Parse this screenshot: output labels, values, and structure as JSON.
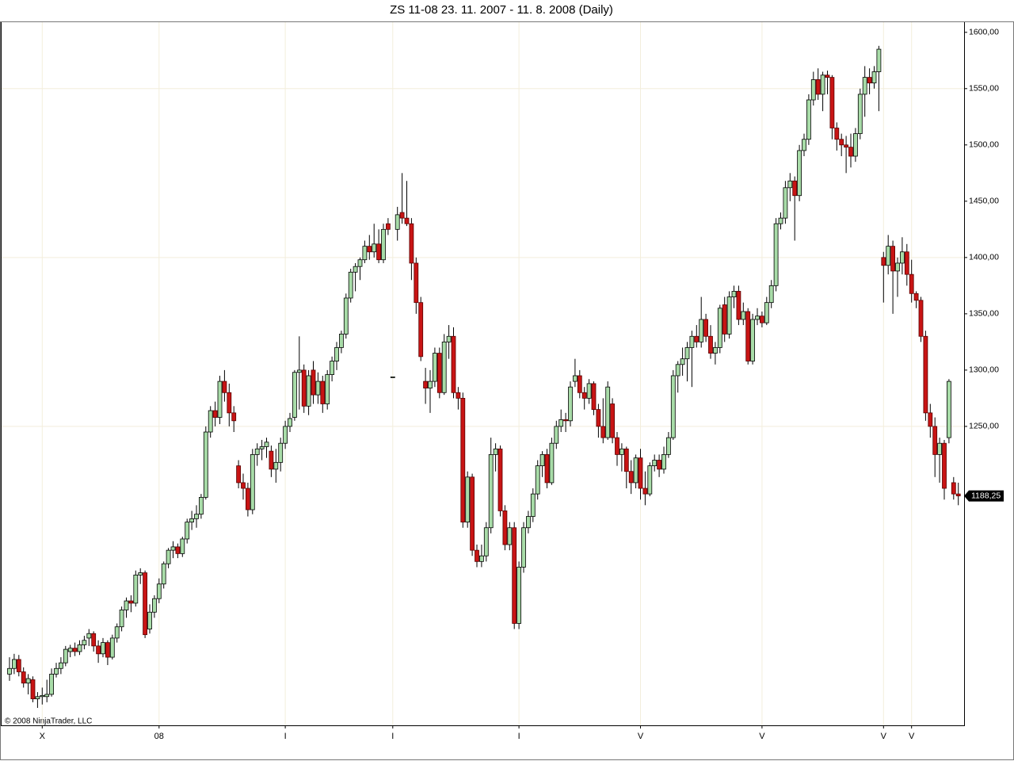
{
  "chart_data": {
    "type": "candlestick",
    "title": "ZS 11-08  23. 11. 2007 - 11. 8. 2008 (Daily)",
    "copyright": "© 2008 NinjaTrader, LLC",
    "up_color": "#a8dca8",
    "down_color": "#c81414",
    "ylim": [
      984.5,
      1609
    ],
    "yticks": [
      {
        "value": 1250,
        "label": "1250,00"
      },
      {
        "value": 1300,
        "label": "1300,00"
      },
      {
        "value": 1350,
        "label": "1350,00"
      },
      {
        "value": 1400,
        "label": "1400,00"
      },
      {
        "value": 1450,
        "label": "1450,00"
      },
      {
        "value": 1500,
        "label": "1500,00"
      },
      {
        "value": 1550,
        "label": "1550,00"
      },
      {
        "value": 1600,
        "label": "1600,00"
      }
    ],
    "ygrid": [
      1250,
      1400,
      1550
    ],
    "last_price": {
      "value": 1188.25,
      "label": "1188,25"
    },
    "categories": [
      null,
      null,
      null,
      null,
      null,
      null,
      null,
      "X",
      null,
      null,
      null,
      null,
      null,
      null,
      null,
      null,
      null,
      null,
      null,
      null,
      null,
      null,
      null,
      null,
      null,
      null,
      null,
      null,
      null,
      null,
      null,
      null,
      "08",
      null,
      null,
      null,
      null,
      null,
      null,
      null,
      null,
      null,
      null,
      null,
      null,
      null,
      null,
      null,
      null,
      null,
      null,
      null,
      null,
      null,
      null,
      null,
      null,
      null,
      null,
      "I",
      null,
      null,
      null,
      null,
      null,
      null,
      null,
      null,
      null,
      null,
      null,
      null,
      null,
      null,
      null,
      null,
      null,
      null,
      null,
      null,
      null,
      null,
      "I",
      null,
      null,
      null,
      null,
      null,
      null,
      null,
      null,
      null,
      null,
      null,
      null,
      null,
      null,
      null,
      null,
      null,
      null,
      null,
      null,
      null,
      null,
      null,
      null,
      null,
      null,
      "I",
      null,
      null,
      null,
      null,
      null,
      null,
      null,
      null,
      null,
      null,
      null,
      null,
      null,
      null,
      null,
      null,
      null,
      null,
      null,
      null,
      null,
      null,
      null,
      null,
      null,
      "V",
      null,
      null,
      null,
      null,
      null,
      null,
      null,
      null,
      null,
      null,
      null,
      null,
      null,
      null,
      null,
      null,
      null,
      null,
      null,
      null,
      null,
      null,
      null,
      null,
      null,
      "V",
      null,
      null,
      null,
      null,
      null,
      null,
      null,
      null,
      null,
      null,
      null,
      null,
      null,
      null,
      null,
      null,
      null,
      null,
      null,
      null,
      null,
      null,
      null,
      null,
      null,
      "V",
      null,
      null,
      null,
      null,
      null,
      "V",
      null,
      null,
      null,
      null,
      null,
      null,
      null,
      null,
      null,
      null
    ],
    "ohlc": [
      [
        1030,
        1045,
        1024,
        1035
      ],
      [
        1035,
        1048,
        1030,
        1043
      ],
      [
        1043,
        1047,
        1028,
        1032
      ],
      [
        1032,
        1036,
        1018,
        1022
      ],
      [
        1022,
        1030,
        1012,
        1026
      ],
      [
        1025,
        1028,
        1005,
        1008
      ],
      [
        1008,
        1014,
        1000,
        1010
      ],
      [
        1010,
        1018,
        1003,
        1011
      ],
      [
        1010,
        1025,
        1005,
        1012
      ],
      [
        1012,
        1035,
        1010,
        1030
      ],
      [
        1030,
        1040,
        1027,
        1035
      ],
      [
        1035,
        1045,
        1030,
        1040
      ],
      [
        1040,
        1055,
        1037,
        1052
      ],
      [
        1050,
        1056,
        1045,
        1053
      ],
      [
        1053,
        1058,
        1046,
        1050
      ],
      [
        1050,
        1060,
        1047,
        1056
      ],
      [
        1056,
        1064,
        1052,
        1060
      ],
      [
        1062,
        1070,
        1055,
        1066
      ],
      [
        1066,
        1068,
        1050,
        1055
      ],
      [
        1055,
        1060,
        1040,
        1048
      ],
      [
        1048,
        1062,
        1045,
        1058
      ],
      [
        1058,
        1060,
        1038,
        1045
      ],
      [
        1045,
        1065,
        1043,
        1062
      ],
      [
        1062,
        1075,
        1058,
        1072
      ],
      [
        1072,
        1090,
        1068,
        1087
      ],
      [
        1087,
        1098,
        1080,
        1095
      ],
      [
        1095,
        1100,
        1085,
        1093
      ],
      [
        1093,
        1122,
        1090,
        1118
      ],
      [
        1118,
        1124,
        1110,
        1120
      ],
      [
        1120,
        1122,
        1062,
        1065
      ],
      [
        1070,
        1092,
        1066,
        1085
      ],
      [
        1085,
        1100,
        1080,
        1097
      ],
      [
        1097,
        1115,
        1093,
        1110
      ],
      [
        1110,
        1130,
        1106,
        1128
      ],
      [
        1128,
        1142,
        1124,
        1140
      ],
      [
        1140,
        1148,
        1133,
        1143
      ],
      [
        1143,
        1146,
        1133,
        1137
      ],
      [
        1137,
        1152,
        1134,
        1150
      ],
      [
        1150,
        1168,
        1146,
        1165
      ],
      [
        1165,
        1175,
        1158,
        1168
      ],
      [
        1168,
        1180,
        1160,
        1172
      ],
      [
        1172,
        1190,
        1168,
        1187
      ],
      [
        1187,
        1250,
        1185,
        1245
      ],
      [
        1245,
        1268,
        1240,
        1264
      ],
      [
        1264,
        1272,
        1250,
        1258
      ],
      [
        1258,
        1295,
        1252,
        1290
      ],
      [
        1290,
        1300,
        1272,
        1280
      ],
      [
        1280,
        1288,
        1250,
        1262
      ],
      [
        1262,
        1268,
        1245,
        1255
      ],
      [
        1215,
        1220,
        1195,
        1200
      ],
      [
        1200,
        1208,
        1185,
        1195
      ],
      [
        1195,
        1200,
        1170,
        1176
      ],
      [
        1176,
        1230,
        1172,
        1225
      ],
      [
        1225,
        1235,
        1215,
        1230
      ],
      [
        1230,
        1238,
        1220,
        1232
      ],
      [
        1232,
        1240,
        1222,
        1236
      ],
      [
        1228,
        1233,
        1205,
        1212
      ],
      [
        1212,
        1230,
        1200,
        1218
      ],
      [
        1218,
        1240,
        1210,
        1235
      ],
      [
        1235,
        1255,
        1230,
        1250
      ],
      [
        1250,
        1262,
        1245,
        1257
      ],
      [
        1258,
        1300,
        1255,
        1298
      ],
      [
        1298,
        1330,
        1265,
        1300
      ],
      [
        1300,
        1305,
        1262,
        1268
      ],
      [
        1268,
        1300,
        1260,
        1295
      ],
      [
        1300,
        1308,
        1270,
        1278
      ],
      [
        1278,
        1298,
        1270,
        1290
      ],
      [
        1290,
        1295,
        1262,
        1270
      ],
      [
        1270,
        1300,
        1265,
        1296
      ],
      [
        1296,
        1312,
        1290,
        1308
      ],
      [
        1308,
        1325,
        1300,
        1320
      ],
      [
        1320,
        1335,
        1315,
        1332
      ],
      [
        1332,
        1368,
        1328,
        1364
      ],
      [
        1364,
        1390,
        1360,
        1387
      ],
      [
        1387,
        1395,
        1370,
        1392
      ],
      [
        1392,
        1400,
        1380,
        1398
      ],
      [
        1398,
        1415,
        1395,
        1410
      ],
      [
        1410,
        1420,
        1398,
        1405
      ],
      [
        1405,
        1430,
        1400,
        1412
      ],
      [
        1412,
        1425,
        1395,
        1398
      ],
      [
        1398,
        1430,
        1395,
        1425
      ],
      [
        1430,
        1435,
        1420,
        1425
      ],
      [
        1294,
        1294,
        1294,
        1294
      ],
      [
        1425,
        1445,
        1415,
        1438
      ],
      [
        1440,
        1475,
        1430,
        1435
      ],
      [
        1435,
        1468,
        1428,
        1430
      ],
      [
        1430,
        1435,
        1380,
        1395
      ],
      [
        1395,
        1400,
        1350,
        1360
      ],
      [
        1360,
        1365,
        1308,
        1312
      ],
      [
        1290,
        1302,
        1270,
        1284
      ],
      [
        1284,
        1300,
        1262,
        1290
      ],
      [
        1290,
        1320,
        1285,
        1315
      ],
      [
        1315,
        1320,
        1275,
        1280
      ],
      [
        1280,
        1332,
        1278,
        1325
      ],
      [
        1325,
        1340,
        1310,
        1330
      ],
      [
        1330,
        1338,
        1275,
        1280
      ],
      [
        1280,
        1285,
        1265,
        1275
      ],
      [
        1275,
        1280,
        1160,
        1165
      ],
      [
        1165,
        1210,
        1160,
        1205
      ],
      [
        1205,
        1208,
        1135,
        1140
      ],
      [
        1140,
        1145,
        1125,
        1130
      ],
      [
        1130,
        1145,
        1125,
        1135
      ],
      [
        1135,
        1165,
        1130,
        1160
      ],
      [
        1160,
        1240,
        1155,
        1225
      ],
      [
        1225,
        1235,
        1210,
        1230
      ],
      [
        1230,
        1233,
        1170,
        1175
      ],
      [
        1175,
        1180,
        1140,
        1145
      ],
      [
        1145,
        1165,
        1140,
        1160
      ],
      [
        1160,
        1165,
        1070,
        1075
      ],
      [
        1075,
        1130,
        1070,
        1125
      ],
      [
        1125,
        1165,
        1120,
        1160
      ],
      [
        1160,
        1175,
        1155,
        1170
      ],
      [
        1170,
        1195,
        1165,
        1190
      ],
      [
        1190,
        1220,
        1185,
        1215
      ],
      [
        1215,
        1228,
        1205,
        1225
      ],
      [
        1225,
        1230,
        1195,
        1200
      ],
      [
        1200,
        1240,
        1198,
        1235
      ],
      [
        1235,
        1255,
        1230,
        1250
      ],
      [
        1250,
        1265,
        1245,
        1256
      ],
      [
        1256,
        1262,
        1245,
        1255
      ],
      [
        1255,
        1290,
        1250,
        1285
      ],
      [
        1290,
        1310,
        1285,
        1295
      ],
      [
        1295,
        1300,
        1275,
        1280
      ],
      [
        1280,
        1285,
        1265,
        1275
      ],
      [
        1275,
        1292,
        1270,
        1288
      ],
      [
        1288,
        1290,
        1260,
        1265
      ],
      [
        1265,
        1270,
        1240,
        1250
      ],
      [
        1250,
        1275,
        1235,
        1240
      ],
      [
        1240,
        1290,
        1238,
        1285
      ],
      [
        1270,
        1275,
        1235,
        1240
      ],
      [
        1240,
        1245,
        1215,
        1225
      ],
      [
        1225,
        1235,
        1210,
        1230
      ],
      [
        1230,
        1232,
        1195,
        1210
      ],
      [
        1210,
        1220,
        1190,
        1200
      ],
      [
        1200,
        1225,
        1195,
        1222
      ],
      [
        1222,
        1230,
        1185,
        1195
      ],
      [
        1195,
        1210,
        1180,
        1190
      ],
      [
        1190,
        1218,
        1188,
        1215
      ],
      [
        1215,
        1225,
        1210,
        1220
      ],
      [
        1220,
        1225,
        1205,
        1212
      ],
      [
        1212,
        1232,
        1208,
        1225
      ],
      [
        1225,
        1245,
        1222,
        1240
      ],
      [
        1240,
        1300,
        1238,
        1295
      ],
      [
        1295,
        1308,
        1280,
        1305
      ],
      [
        1305,
        1320,
        1295,
        1310
      ],
      [
        1310,
        1325,
        1290,
        1320
      ],
      [
        1320,
        1335,
        1285,
        1330
      ],
      [
        1330,
        1340,
        1320,
        1325
      ],
      [
        1325,
        1365,
        1320,
        1345
      ],
      [
        1345,
        1350,
        1325,
        1330
      ],
      [
        1330,
        1340,
        1310,
        1315
      ],
      [
        1315,
        1325,
        1305,
        1320
      ],
      [
        1320,
        1358,
        1315,
        1355
      ],
      [
        1358,
        1365,
        1325,
        1332
      ],
      [
        1332,
        1370,
        1328,
        1365
      ],
      [
        1365,
        1375,
        1355,
        1370
      ],
      [
        1370,
        1375,
        1340,
        1345
      ],
      [
        1345,
        1360,
        1340,
        1352
      ],
      [
        1352,
        1355,
        1305,
        1308
      ],
      [
        1308,
        1350,
        1305,
        1345
      ],
      [
        1345,
        1355,
        1340,
        1348
      ],
      [
        1348,
        1352,
        1338,
        1342
      ],
      [
        1342,
        1365,
        1340,
        1360
      ],
      [
        1360,
        1380,
        1355,
        1375
      ],
      [
        1375,
        1435,
        1370,
        1430
      ],
      [
        1430,
        1440,
        1425,
        1435
      ],
      [
        1435,
        1468,
        1430,
        1462
      ],
      [
        1462,
        1475,
        1450,
        1468
      ],
      [
        1468,
        1472,
        1415,
        1455
      ],
      [
        1455,
        1500,
        1450,
        1495
      ],
      [
        1495,
        1510,
        1490,
        1505
      ],
      [
        1505,
        1545,
        1500,
        1540
      ],
      [
        1540,
        1565,
        1535,
        1558
      ],
      [
        1558,
        1568,
        1540,
        1545
      ],
      [
        1545,
        1565,
        1530,
        1562
      ],
      [
        1562,
        1566,
        1545,
        1560
      ],
      [
        1560,
        1562,
        1505,
        1515
      ],
      [
        1515,
        1520,
        1495,
        1505
      ],
      [
        1505,
        1510,
        1490,
        1500
      ],
      [
        1500,
        1508,
        1475,
        1498
      ],
      [
        1498,
        1510,
        1480,
        1490
      ],
      [
        1490,
        1515,
        1485,
        1510
      ],
      [
        1510,
        1550,
        1505,
        1545
      ],
      [
        1545,
        1570,
        1525,
        1560
      ],
      [
        1560,
        1568,
        1545,
        1555
      ],
      [
        1555,
        1570,
        1550,
        1565
      ],
      [
        1565,
        1588,
        1530,
        1585
      ],
      [
        1400,
        1405,
        1360,
        1393
      ],
      [
        1393,
        1420,
        1385,
        1410
      ],
      [
        1410,
        1415,
        1350,
        1388
      ],
      [
        1388,
        1400,
        1365,
        1395
      ],
      [
        1395,
        1418,
        1385,
        1405
      ],
      [
        1405,
        1412,
        1375,
        1385
      ],
      [
        1385,
        1398,
        1360,
        1368
      ],
      [
        1368,
        1370,
        1355,
        1362
      ],
      [
        1362,
        1365,
        1325,
        1330
      ],
      [
        1330,
        1335,
        1255,
        1262
      ],
      [
        1262,
        1270,
        1240,
        1250
      ],
      [
        1250,
        1258,
        1205,
        1225
      ],
      [
        1225,
        1240,
        1200,
        1235
      ],
      [
        1235,
        1238,
        1185,
        1195
      ],
      [
        1240,
        1292,
        1235,
        1290
      ],
      [
        1200,
        1205,
        1185,
        1190
      ],
      [
        1190,
        1200,
        1180,
        1188.25
      ]
    ]
  }
}
